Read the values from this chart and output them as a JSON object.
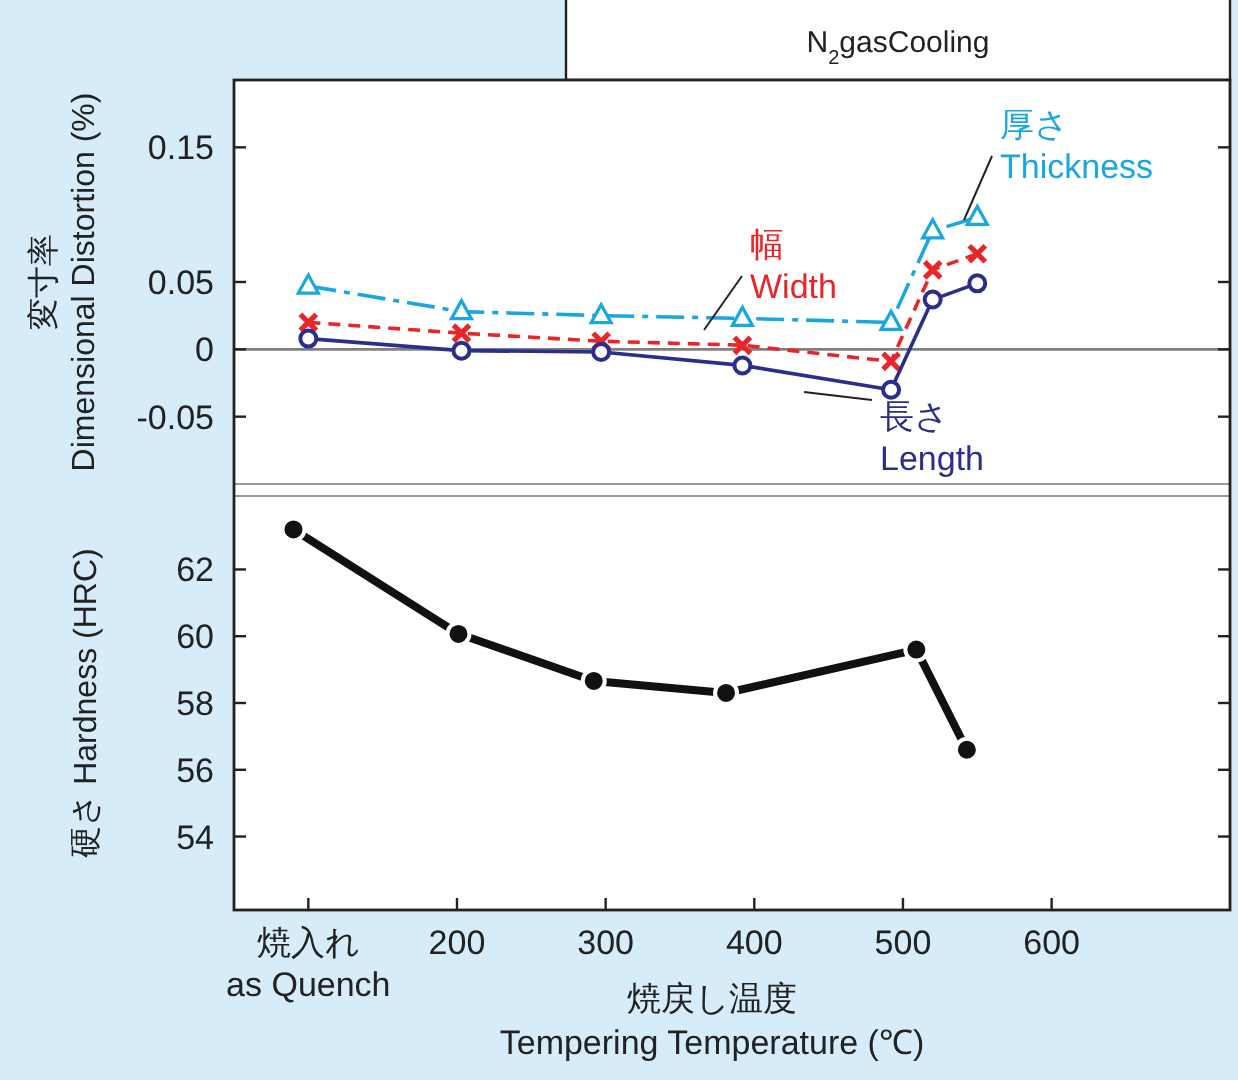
{
  "chart_data": [
    {
      "type": "line",
      "title": "N$_{2}$gasCooling",
      "ylabel": "変寸率\nDimensional Distortion (%)",
      "xlim": [
        50,
        720
      ],
      "ylim": [
        -0.1,
        0.2
      ],
      "yticks": [
        {
          "value": -0.05,
          "label": "-0.05"
        },
        0,
        0.05,
        0.15
      ],
      "tick_labels": "y",
      "grid": false,
      "ref_lines": [
        {
          "axis": "y",
          "value": 0,
          "color": "#808080",
          "line_style": "solid"
        }
      ],
      "series": [
        {
          "name": "厚さ\nThickness",
          "color": "#1aa7e0",
          "marker": "triangle",
          "line_style": "dashdot",
          "x": [
            100,
            203,
            297,
            392,
            492,
            520,
            550
          ],
          "values": [
            0.047,
            0.028,
            0.025,
            0.023,
            0.02,
            0.088,
            0.098
          ]
        },
        {
          "name": "幅\nWidth",
          "color": "#e8262a",
          "marker": "cross",
          "line_style": "dashed",
          "x": [
            100,
            203,
            297,
            392,
            492,
            520,
            550
          ],
          "values": [
            0.02,
            0.012,
            0.006,
            0.003,
            -0.009,
            0.059,
            0.071
          ]
        },
        {
          "name": "長さ\nLength",
          "color": "#2b2e8c",
          "marker": "circle",
          "line_style": "solid",
          "x": [
            100,
            203,
            297,
            392,
            492,
            520,
            550
          ],
          "values": [
            0.008,
            -0.001,
            -0.002,
            -0.012,
            -0.03,
            0.037,
            0.049
          ]
        }
      ]
    },
    {
      "type": "line",
      "ylabel": "硬さ Hardness (HRC)",
      "xlabel": "焼戻し温度\nTempering Temperature (℃)",
      "xlim": [
        50,
        720
      ],
      "ylim": [
        51.8,
        64.2
      ],
      "xticks": [
        {
          "value": 100,
          "label": "焼入れ\nas Quench"
        },
        200,
        300,
        400,
        500,
        600
      ],
      "yticks": [
        54,
        56,
        58,
        60,
        62
      ],
      "grid": false,
      "series": [
        {
          "color": "#111111",
          "marker": "circle",
          "line_style": "solid",
          "x": [
            90,
            201,
            292,
            381,
            509,
            543
          ],
          "values": [
            63.2,
            60.07,
            58.66,
            58.3,
            59.6,
            56.6
          ]
        }
      ]
    }
  ]
}
